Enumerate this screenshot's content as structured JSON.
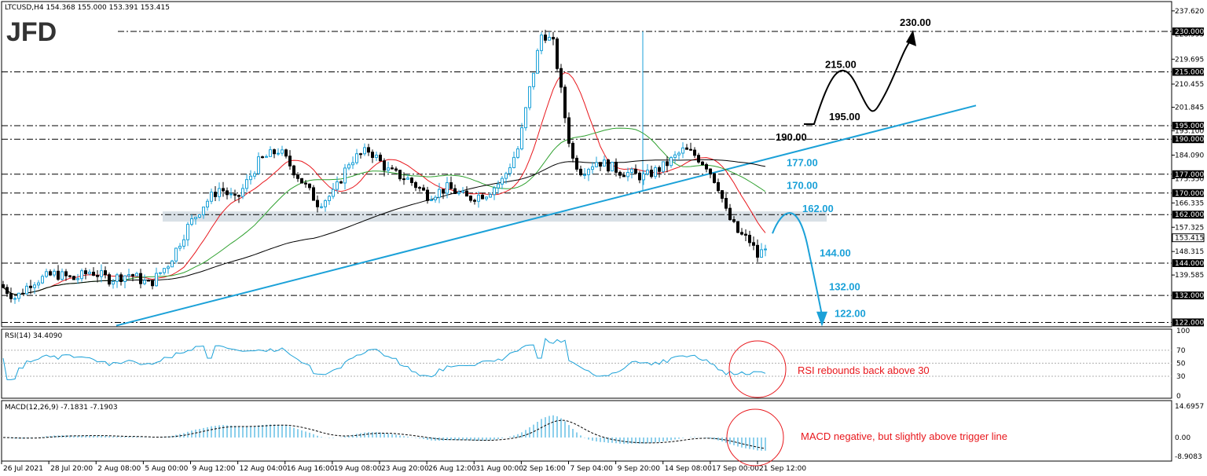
{
  "header": {
    "symbol_info": "LTCUSD,H4  154.368 155.000 153.391 153.415"
  },
  "brand": {
    "logo": "JFD"
  },
  "chart_data": [
    {
      "type": "candlestick",
      "symbol": "LTCUSD",
      "timeframe": "H4",
      "ohlc_last": {
        "open": 154.368,
        "high": 155.0,
        "low": 153.391,
        "close": 153.415
      },
      "y_ticks": [
        "237.620",
        "228.995",
        "219.695",
        "210.455",
        "201.845",
        "193.100",
        "184.090",
        "175.350",
        "166.335",
        "157.325",
        "148.315",
        "139.585"
      ],
      "ylim": [
        118,
        240
      ],
      "level_labels": [
        {
          "id": "l230",
          "value": 230.0,
          "label": "230.000"
        },
        {
          "id": "l215",
          "value": 215.0,
          "label": "215.000"
        },
        {
          "id": "l195",
          "value": 195.0,
          "label": "195.000"
        },
        {
          "id": "l190",
          "value": 190.0,
          "label": "190.000"
        },
        {
          "id": "l177",
          "value": 177.0,
          "label": "177.000"
        },
        {
          "id": "l170",
          "value": 170.0,
          "label": "170.000"
        },
        {
          "id": "l162",
          "value": 162.0,
          "label": "162.000"
        },
        {
          "id": "l144",
          "value": 144.0,
          "label": "144.000"
        },
        {
          "id": "l132",
          "value": 132.0,
          "label": "132.000"
        },
        {
          "id": "l122",
          "value": 122.0,
          "label": "122.000"
        }
      ],
      "current_price_label": "153.415",
      "price_labels_on_chart": [
        {
          "id": "t230",
          "text": "230.00",
          "color": "#000000"
        },
        {
          "id": "t215",
          "text": "215.00",
          "color": "#000000"
        },
        {
          "id": "t195",
          "text": "195.00",
          "color": "#000000"
        },
        {
          "id": "t190",
          "text": "190.00",
          "color": "#000000"
        },
        {
          "id": "t177",
          "text": "177.00",
          "color": "#1ba1d8"
        },
        {
          "id": "t170",
          "text": "170.00",
          "color": "#1ba1d8"
        },
        {
          "id": "t162",
          "text": "162.00",
          "color": "#1ba1d8"
        },
        {
          "id": "t144",
          "text": "144.00",
          "color": "#1ba1d8"
        },
        {
          "id": "t132",
          "text": "132.00",
          "color": "#1ba1d8"
        },
        {
          "id": "t122",
          "text": "122.00",
          "color": "#1ba1d8"
        }
      ],
      "x_ticks": [
        "26 Jul 2021",
        "28 Jul 20:00",
        "2 Aug 08:00",
        "5 Aug 00:00",
        "9 Aug 12:00",
        "12 Aug 04:00",
        "16 Aug 16:00",
        "19 Aug 08:00",
        "23 Aug 20:00",
        "26 Aug 12:00",
        "31 Aug 00:00",
        "2 Sep 16:00",
        "7 Sep 04:00",
        "9 Sep 20:00",
        "14 Sep 08:00",
        "17 Sep 00:00",
        "21 Sep 12:00"
      ],
      "colors": {
        "bull": "#1ba1d8",
        "bear": "#000000",
        "ma_fast": "#e8171c",
        "ma_mid": "#2ea02e",
        "ma_slow": "#000000",
        "trendline": "#1ba1d8"
      }
    },
    {
      "type": "line",
      "name": "RSI(14) 34.4090",
      "y_ticks": [
        "100",
        "70",
        "50",
        "30",
        "0"
      ],
      "ylim": [
        0,
        100
      ],
      "guide_levels": [
        70,
        50,
        30
      ],
      "last_value": 34.409,
      "annotation": "RSI rebounds back above 30"
    },
    {
      "type": "histogram",
      "name": "MACD(12,26,9) -7.1831 -7.1903",
      "y_ticks": [
        "14.6957",
        "0.00",
        "-8.9083"
      ],
      "ylim": [
        -8.9083,
        14.6957
      ],
      "macd_last": -7.1831,
      "signal_last": -7.1903,
      "annotation": "MACD negative, but slightly above trigger line"
    }
  ]
}
